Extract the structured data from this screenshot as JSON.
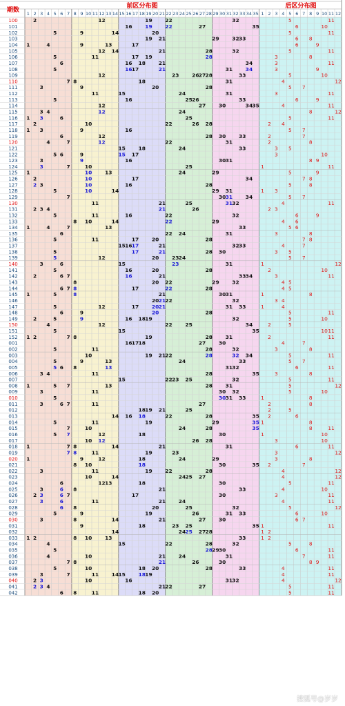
{
  "chart_data": {
    "type": "table",
    "title_front": "前区分布图",
    "title_back": "后区分布图",
    "issue_header": "期数",
    "front_cols": [
      "1",
      "2",
      "3",
      "4",
      "5",
      "6",
      "7",
      "8",
      "9",
      "10",
      "11",
      "12",
      "13",
      "14",
      "15",
      "16",
      "17",
      "18",
      "19",
      "20",
      "21",
      "22",
      "23",
      "24",
      "25",
      "26",
      "27",
      "28",
      "29",
      "30",
      "31",
      "32",
      "33",
      "34",
      "35"
    ],
    "back_cols": [
      "1",
      "2",
      "3",
      "4",
      "5",
      "6",
      "7",
      "8",
      "9",
      "10",
      "11",
      "12"
    ],
    "colors": {
      "zone1": "#f7ded5",
      "zone2": "#f8f2d0",
      "zone3": "#dcdcf8",
      "zone4": "#d6efd6",
      "zone5": "#f6d6ef",
      "back": "#cdf3f3",
      "number": "#111111",
      "repeat_number": "#1a1ad6",
      "back_number": "#e01010",
      "issue_normal": "#1a4a7a",
      "issue_highlight": "#e01010",
      "title": "#e01010"
    },
    "rows": [
      {
        "issue": "100",
        "front": [
          2,
          12,
          19,
          22,
          32
        ],
        "back": [
          5,
          11
        ]
      },
      {
        "issue": "101",
        "front": [
          16,
          19,
          22,
          27,
          35
        ],
        "back": [
          6,
          10
        ]
      },
      {
        "issue": "102",
        "front": [
          5,
          9,
          14,
          20
        ],
        "back": [
          5,
          11
        ]
      },
      {
        "issue": "103",
        "front": [
          19,
          21,
          29,
          32,
          33
        ],
        "back": [
          6,
          8
        ]
      },
      {
        "issue": "104",
        "front": [
          1,
          4,
          9,
          13,
          17
        ],
        "back": [
          6,
          9
        ]
      },
      {
        "issue": "105",
        "front": [
          12,
          14,
          21,
          28,
          32
        ],
        "back": [
          5,
          11
        ]
      },
      {
        "issue": "106",
        "front": [
          5,
          11,
          17,
          19,
          28
        ],
        "back": [
          3,
          8
        ]
      },
      {
        "issue": "107",
        "front": [
          6,
          16,
          18,
          21,
          34
        ],
        "back": [
          3,
          11
        ]
      },
      {
        "issue": "108",
        "front": [
          5,
          16,
          17,
          21,
          31,
          34
        ],
        "back": [
          3,
          9
        ]
      },
      {
        "issue": "109",
        "front": [
          12,
          23,
          26,
          27,
          28,
          33
        ],
        "back": [
          5,
          10
        ]
      },
      {
        "issue": "110",
        "front": [
          7,
          8,
          18,
          31
        ],
        "back": [
          4,
          12
        ]
      },
      {
        "issue": "111",
        "front": [
          3,
          9,
          20,
          28
        ],
        "back": [
          5,
          7
        ]
      },
      {
        "issue": "112",
        "front": [
          11,
          15,
          24,
          31
        ],
        "back": [
          3,
          11
        ]
      },
      {
        "issue": "113",
        "front": [
          5,
          16,
          25,
          26,
          33
        ],
        "back": [
          6,
          9
        ]
      },
      {
        "issue": "114",
        "front": [
          12,
          27,
          30,
          34,
          35
        ],
        "back": [
          4,
          11
        ]
      },
      {
        "issue": "115",
        "front": [
          3,
          4,
          12,
          24
        ],
        "back": [
          8,
          12
        ]
      },
      {
        "issue": "116",
        "front": [
          1,
          3,
          6,
          25
        ],
        "back": [
          5,
          11
        ]
      },
      {
        "issue": "117",
        "front": [
          2,
          10,
          22,
          26,
          28
        ],
        "back": [
          2,
          4
        ]
      },
      {
        "issue": "118",
        "front": [
          1,
          3,
          9,
          16
        ],
        "back": [
          5,
          7
        ]
      },
      {
        "issue": "119",
        "front": [
          6,
          12,
          28,
          30,
          33
        ],
        "back": [
          2,
          7
        ]
      },
      {
        "issue": "120",
        "front": [
          4,
          7,
          12,
          22,
          31
        ],
        "back": [
          2,
          8
        ]
      },
      {
        "issue": "121",
        "front": [
          15,
          18,
          24,
          33
        ],
        "back": [
          3,
          5
        ]
      },
      {
        "issue": "122",
        "front": [
          5,
          6,
          9,
          15,
          17
        ],
        "back": [
          3,
          10
        ]
      },
      {
        "issue": "123",
        "front": [
          3,
          9,
          16,
          30,
          31
        ],
        "back": [
          8,
          9
        ]
      },
      {
        "issue": "124",
        "front": [
          3,
          7,
          10,
          25
        ],
        "back": [
          1,
          11
        ]
      },
      {
        "issue": "125",
        "front": [
          1,
          10,
          13,
          24,
          29
        ],
        "back": [
          5,
          9
        ]
      },
      {
        "issue": "126",
        "front": [
          2,
          10,
          17,
          34
        ],
        "back": [
          7,
          8
        ]
      },
      {
        "issue": "127",
        "front": [
          2,
          3,
          10,
          16,
          28
        ],
        "back": [
          5,
          8
        ]
      },
      {
        "issue": "128",
        "front": [
          5,
          10,
          14,
          29,
          31
        ],
        "back": [
          1,
          3
        ]
      },
      {
        "issue": "129",
        "front": [
          7,
          30,
          31,
          34
        ],
        "back": [
          5,
          7
        ]
      },
      {
        "issue": "130",
        "front": [
          11,
          21,
          25,
          31,
          32
        ],
        "back": [
          4,
          11
        ]
      },
      {
        "issue": "131",
        "front": [
          2,
          3,
          4,
          21,
          26
        ],
        "back": [
          2,
          3
        ]
      },
      {
        "issue": "132",
        "front": [
          5,
          11,
          16,
          22,
          32
        ],
        "back": [
          6,
          9
        ]
      },
      {
        "issue": "133",
        "front": [
          8,
          10,
          14,
          22,
          29
        ],
        "back": [
          4,
          6
        ]
      },
      {
        "issue": "134",
        "front": [
          1,
          4,
          7,
          13,
          33
        ],
        "back": [
          5,
          6
        ]
      },
      {
        "issue": "135",
        "front": [
          6,
          22,
          24,
          31
        ],
        "back": [
          3,
          8
        ]
      },
      {
        "issue": "136",
        "front": [
          5,
          11,
          17,
          20,
          28
        ],
        "back": [
          7,
          8
        ]
      },
      {
        "issue": "137",
        "front": [
          15,
          16,
          17,
          21,
          32,
          33
        ],
        "back": [
          4,
          7
        ]
      },
      {
        "issue": "138",
        "front": [
          5,
          17,
          21,
          28,
          30
        ],
        "back": [
          3,
          5
        ]
      },
      {
        "issue": "139",
        "front": [
          5,
          12,
          20,
          23,
          24
        ],
        "back": [
          5,
          7
        ]
      },
      {
        "issue": "140",
        "front": [
          3,
          6,
          15,
          23,
          31
        ],
        "back": [
          1,
          12
        ]
      },
      {
        "issue": "141",
        "front": [
          5,
          16,
          20,
          28
        ],
        "back": [
          2,
          10
        ]
      },
      {
        "issue": "142",
        "front": [
          2,
          6,
          7,
          16,
          21,
          33,
          34
        ],
        "back": [
          3,
          11
        ]
      },
      {
        "issue": "143",
        "front": [
          8,
          20,
          22,
          29,
          32
        ],
        "back": [
          4,
          5
        ]
      },
      {
        "issue": "144",
        "front": [
          6,
          7,
          8,
          17,
          22,
          28
        ],
        "back": [
          4,
          5
        ]
      },
      {
        "issue": "145",
        "front": [
          1,
          5,
          8,
          21,
          30,
          31
        ],
        "back": [
          1,
          8
        ]
      },
      {
        "issue": "146",
        "front": [
          20,
          21,
          22,
          32
        ],
        "back": [
          3,
          4
        ]
      },
      {
        "issue": "147",
        "front": [
          5,
          12,
          17,
          20,
          21,
          31,
          33
        ],
        "back": [
          1,
          4
        ]
      },
      {
        "issue": "148",
        "front": [
          6,
          9,
          20,
          28
        ],
        "back": [
          5,
          11
        ]
      },
      {
        "issue": "149",
        "front": [
          2,
          5,
          9,
          16,
          18,
          19,
          32
        ],
        "back": [
          5,
          10
        ]
      },
      {
        "issue": "150",
        "front": [
          4,
          12,
          22,
          25,
          34
        ],
        "back": [
          2,
          5
        ]
      },
      {
        "issue": "151",
        "front": [
          5,
          15,
          35
        ],
        "back": [
          10,
          11
        ]
      },
      {
        "issue": "152",
        "front": [
          1,
          2,
          7,
          8,
          19,
          28,
          31
        ],
        "back": [
          2,
          11
        ]
      },
      {
        "issue": "001",
        "front": [
          16,
          17,
          18,
          27,
          30
        ],
        "back": [
          4,
          7
        ]
      },
      {
        "issue": "002",
        "front": [
          5,
          11,
          28,
          32
        ],
        "back": [
          3,
          8
        ]
      },
      {
        "issue": "003",
        "front": [
          10,
          19,
          21,
          22,
          28,
          32,
          34
        ],
        "back": [
          5,
          11
        ]
      },
      {
        "issue": "004",
        "front": [
          5,
          9,
          13,
          24,
          33
        ],
        "back": [
          5,
          7
        ]
      },
      {
        "issue": "005",
        "front": [
          5,
          6,
          8,
          13,
          31,
          32
        ],
        "back": [
          6,
          11
        ]
      },
      {
        "issue": "006",
        "front": [
          3,
          4,
          11,
          28,
          35
        ],
        "back": [
          3,
          8
        ]
      },
      {
        "issue": "007",
        "front": [
          15,
          22,
          23,
          25,
          32
        ],
        "back": [
          5,
          11
        ]
      },
      {
        "issue": "008",
        "front": [
          1,
          5,
          7,
          13,
          28,
          31
        ],
        "back": [
          5,
          12
        ]
      },
      {
        "issue": "009",
        "front": [
          3,
          11,
          30,
          32
        ],
        "back": [
          5,
          10
        ]
      },
      {
        "issue": "010",
        "front": [
          5,
          30,
          31,
          33
        ],
        "back": [
          1,
          8
        ]
      },
      {
        "issue": "011",
        "front": [
          3,
          6,
          7,
          11,
          27
        ],
        "back": [
          2,
          8
        ]
      },
      {
        "issue": "012",
        "front": [
          18,
          19,
          21,
          25
        ],
        "back": [
          2,
          5
        ]
      },
      {
        "issue": "013",
        "front": [
          14,
          16,
          18,
          22,
          28,
          35
        ],
        "back": [
          2,
          6
        ]
      },
      {
        "issue": "014",
        "front": [
          5,
          11,
          19,
          29,
          35
        ],
        "back": [
          1,
          8
        ]
      },
      {
        "issue": "015",
        "front": [
          7,
          10,
          24,
          28,
          35
        ],
        "back": [
          8,
          11
        ]
      },
      {
        "issue": "016",
        "front": [
          5,
          7,
          12,
          18,
          30
        ],
        "back": [
          1,
          10
        ]
      },
      {
        "issue": "017",
        "front": [
          10,
          12,
          26,
          28
        ],
        "back": [
          3,
          10
        ]
      },
      {
        "issue": "018",
        "front": [
          1,
          7,
          8,
          14,
          21,
          31
        ],
        "back": [
          6,
          11
        ]
      },
      {
        "issue": "019",
        "front": [
          7,
          8,
          11,
          19,
          23
        ],
        "back": [
          3,
          12
        ]
      },
      {
        "issue": "020",
        "front": [
          1,
          9,
          12,
          18,
          24,
          29
        ],
        "back": [
          3,
          8
        ]
      },
      {
        "issue": "021",
        "front": [
          8,
          10,
          18,
          30,
          35
        ],
        "back": [
          2,
          7
        ]
      },
      {
        "issue": "022",
        "front": [
          3,
          11,
          19,
          22,
          28
        ],
        "back": [
          4,
          12
        ]
      },
      {
        "issue": "023",
        "front": [
          10,
          14,
          24,
          25,
          27
        ],
        "back": [
          4,
          12
        ]
      },
      {
        "issue": "024",
        "front": [
          6,
          12,
          13,
          18,
          30
        ],
        "back": [
          5,
          11
        ]
      },
      {
        "issue": "025",
        "front": [
          3,
          6,
          8,
          21,
          33
        ],
        "back": [
          4,
          10
        ]
      },
      {
        "issue": "026",
        "front": [
          2,
          3,
          6,
          7,
          17,
          30
        ],
        "back": [
          3,
          11
        ]
      },
      {
        "issue": "027",
        "front": [
          3,
          6,
          11,
          21,
          24
        ],
        "back": [
          4,
          11
        ]
      },
      {
        "issue": "028",
        "front": [
          6,
          8,
          20,
          25,
          32
        ],
        "back": [
          5,
          12
        ]
      },
      {
        "issue": "029",
        "front": [
          5,
          9,
          19,
          26,
          31,
          33
        ],
        "back": [
          6,
          10
        ]
      },
      {
        "issue": "030",
        "front": [
          3,
          8,
          14,
          21,
          27,
          30
        ],
        "back": [
          6,
          7
        ]
      },
      {
        "issue": "031",
        "front": [
          9,
          18,
          23,
          25,
          35
        ],
        "back": [
          1,
          11
        ]
      },
      {
        "issue": "032",
        "front": [
          14,
          24,
          25,
          27,
          28
        ],
        "back": [
          1,
          2
        ]
      },
      {
        "issue": "033",
        "front": [
          1,
          2,
          8,
          10,
          13,
          33
        ],
        "back": [
          1,
          2
        ]
      },
      {
        "issue": "034",
        "front": [
          4,
          15,
          22,
          28,
          32
        ],
        "back": [
          5,
          8
        ]
      },
      {
        "issue": "035",
        "front": [
          5,
          28,
          29,
          30
        ],
        "back": [
          6,
          11
        ]
      },
      {
        "issue": "036",
        "front": [
          4,
          10,
          21,
          24,
          31
        ],
        "back": [
          7,
          11
        ]
      },
      {
        "issue": "037",
        "front": [
          7,
          8,
          21,
          26,
          30
        ],
        "back": [
          8,
          9
        ]
      },
      {
        "issue": "038",
        "front": [
          5,
          10,
          18,
          20,
          28,
          33
        ],
        "back": [
          4,
          11
        ]
      },
      {
        "issue": "039",
        "front": [
          3,
          7,
          11,
          14,
          15,
          18,
          19
        ],
        "back": [
          4,
          11
        ]
      },
      {
        "issue": "040",
        "front": [
          2,
          3,
          10,
          16,
          31,
          32
        ],
        "back": [
          4,
          12
        ]
      },
      {
        "issue": "041",
        "front": [
          2,
          3,
          4,
          21,
          22,
          27
        ],
        "back": [
          5,
          11
        ]
      },
      {
        "issue": "042",
        "front": [
          6,
          8,
          11,
          18,
          20
        ],
        "back": [
          5,
          11
        ]
      }
    ]
  },
  "watermark": "搜狐号@岁岁"
}
